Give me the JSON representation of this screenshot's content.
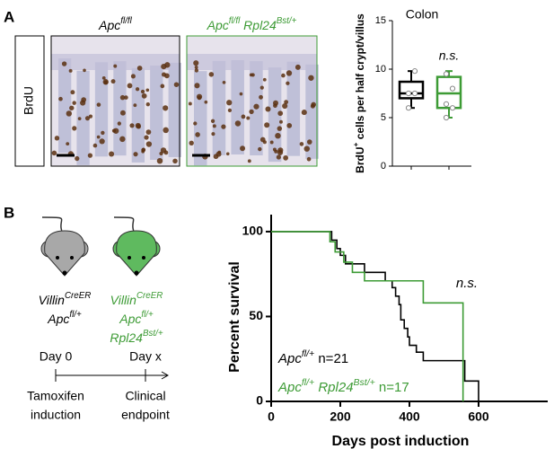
{
  "panel_a": {
    "label": "A",
    "stain": "BrdU",
    "images": [
      {
        "title": [
          {
            "text": "Apc"
          },
          {
            "text": "fl/fl",
            "sup": true
          }
        ],
        "color": "#000000"
      },
      {
        "title": [
          {
            "text": "Apc"
          },
          {
            "text": "fl/fl",
            "sup": true
          },
          {
            "text": " Rpl24"
          },
          {
            "text": "Bst/+",
            "sup": true
          }
        ],
        "color": "#3d9b35"
      }
    ],
    "chart_data": {
      "type": "box",
      "title": "Colon",
      "ylabel": [
        {
          "text": "BrdU"
        },
        {
          "text": "+",
          "sup": true
        },
        {
          "text": " cells per half crypt/villus"
        }
      ],
      "ylim": [
        0,
        15
      ],
      "yticks": [
        0,
        5,
        10,
        15
      ],
      "annotation": "n.s.",
      "annotation_color": "#3d9b35",
      "series": [
        {
          "color": "#000000",
          "min": 6,
          "q1": 7,
          "median": 7.5,
          "q3": 8.7,
          "max": 9.8,
          "points": [
            6,
            7.5,
            7.5,
            9.8
          ]
        },
        {
          "color": "#3d9b35",
          "min": 5,
          "q1": 6,
          "median": 7.5,
          "q3": 9.2,
          "max": 9.8,
          "points": [
            5,
            6,
            6.4,
            8,
            9.5
          ]
        }
      ]
    }
  },
  "panel_b": {
    "label": "B",
    "mice": [
      {
        "color": "#a8a8a8",
        "text_color": "#000000",
        "lines": [
          [
            {
              "text": "Villin"
            },
            {
              "text": "CreER",
              "sup": true
            }
          ],
          [
            {
              "text": "Apc"
            },
            {
              "text": "fl/+",
              "sup": true
            }
          ]
        ]
      },
      {
        "color": "#5fba5f",
        "text_color": "#3d9b35",
        "lines": [
          [
            {
              "text": "Villin"
            },
            {
              "text": "CreER",
              "sup": true
            }
          ],
          [
            {
              "text": "Apc"
            },
            {
              "text": "fl/+",
              "sup": true
            }
          ],
          [
            {
              "text": "Rpl24"
            },
            {
              "text": "Bst/+",
              "sup": true
            }
          ]
        ]
      }
    ],
    "timeline": {
      "start": "Day 0",
      "end": "Day x",
      "start_event": [
        "Tamoxifen",
        "induction"
      ],
      "end_event": [
        "Clinical",
        "endpoint"
      ]
    },
    "chart_data": {
      "type": "survival",
      "xlabel": "Days post induction",
      "ylabel": "Percent survival",
      "xlim": [
        0,
        800
      ],
      "xticks": [
        0,
        200,
        400,
        600
      ],
      "ylim": [
        0,
        110
      ],
      "yticks": [
        0,
        50,
        100
      ],
      "annotation": "n.s.",
      "annotation_color": "#3d9b35",
      "series": [
        {
          "name": [
            {
              "text": "Apc"
            },
            {
              "text": "fl/+",
              "sup": true
            },
            {
              "text": " n=21"
            }
          ],
          "color": "#000000",
          "x": [
            0,
            175,
            190,
            200,
            215,
            270,
            330,
            350,
            360,
            370,
            375,
            385,
            395,
            400,
            420,
            440,
            560,
            600
          ],
          "values": [
            100,
            95,
            90,
            86,
            81,
            76,
            71,
            67,
            62,
            57,
            48,
            43,
            38,
            33,
            29,
            24,
            12,
            0
          ]
        },
        {
          "name": [
            {
              "text": "Apc"
            },
            {
              "text": "fl/+",
              "sup": true
            },
            {
              "text": " Rpl24"
            },
            {
              "text": "Bst/+",
              "sup": true
            },
            {
              "text": " n=17"
            }
          ],
          "color": "#3d9b35",
          "x": [
            0,
            170,
            185,
            210,
            235,
            270,
            440,
            555
          ],
          "values": [
            100,
            94,
            88,
            82,
            76,
            71,
            58,
            0
          ]
        }
      ]
    }
  }
}
